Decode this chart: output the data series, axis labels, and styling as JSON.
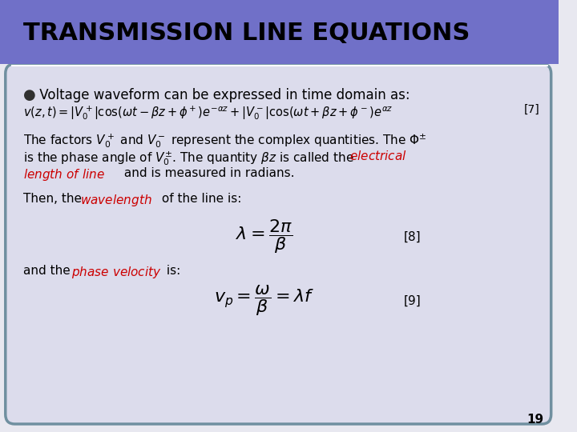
{
  "title": "TRANSMISSION LINE EQUATIONS",
  "title_bg_color": "#7070C8",
  "title_text_color": "#000000",
  "slide_bg_color": "#E8E8F0",
  "content_bg_color": "#DCDCEC",
  "border_color": "#7090A0",
  "page_number": "19",
  "bullet_color": "#404040",
  "red_color": "#CC0000",
  "eq7_label": "[7]",
  "eq8_label": "[8]",
  "eq9_label": "[9]",
  "line1_bullet": "●",
  "line1_text": " Voltage waveform can be expressed in time domain as:",
  "eq7": "v(z,t)=|V_0^+|\\cos(\\omega t - \\beta z + \\phi^+)e^{-\\alpha z}+|V_0^-|\\cos(\\omega t + \\beta z + \\phi^-)e^{\\alpha z}",
  "para1_part1": "The factors ",
  "para1_v0plus": "V_0^+",
  "para1_mid1": "and ",
  "para1_v0minus": "V_0^-",
  "para1_rest1": " represent the complex quantities. The ",
  "para1_phi": "\\Phi^{\\pm}",
  "para1_line2a": "is the phase angle of ",
  "para1_v0pm": "V_0^{\\pm}",
  "para1_line2b": ". The quantity ",
  "para1_bz": "\\beta z",
  "para1_line2c": " is called the ",
  "para1_elec": "electrical",
  "para1_line3a": "length of line",
  "para1_line3b": " and is measured in radians.",
  "then_text1": "Then, the ",
  "then_wavelength": "wavelength",
  "then_text2": " of the line is:",
  "eq8": "\\lambda = \\frac{2\\pi}{\\beta}",
  "andthe_text1": "and the ",
  "andthe_pv": "phase velocity",
  "andthe_text2": " is:",
  "eq9": "v_p = \\frac{\\omega}{\\beta} = \\lambda f"
}
